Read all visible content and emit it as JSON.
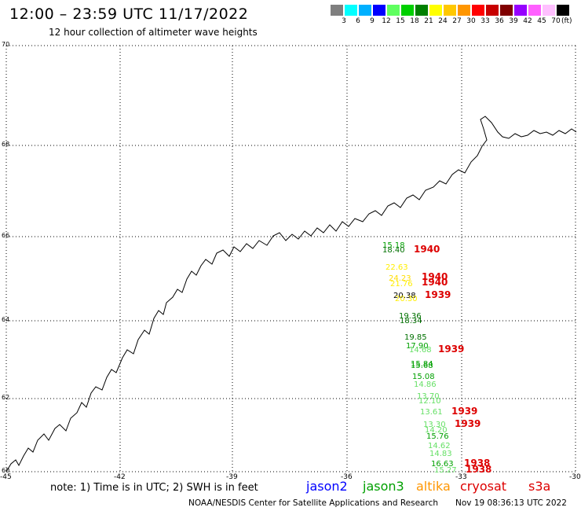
{
  "header": {
    "title": "12:00 – 23:59 UTC 11/17/2022",
    "subtitle": "12 hour collection of altimeter wave heights"
  },
  "legend": {
    "colors": [
      "#7f7f7f",
      "#00ffff",
      "#00b0ff",
      "#0000ff",
      "#5fff5f",
      "#00d000",
      "#008000",
      "#ffff00",
      "#ffc800",
      "#ff9600",
      "#ff0000",
      "#c80000",
      "#800000",
      "#9600ff",
      "#ff60ff",
      "#ffc0ff",
      "#000000"
    ],
    "labels": [
      "3",
      "6",
      "9",
      "12",
      "15",
      "18",
      "21",
      "24",
      "27",
      "30",
      "33",
      "36",
      "39",
      "42",
      "45",
      "70"
    ],
    "unit": "(ft)"
  },
  "axes": {
    "y_ticks": [
      "70",
      "68",
      "66",
      "64",
      "62",
      "60"
    ],
    "x_ticks": [
      "-45",
      "-42",
      "-39",
      "-36",
      "-33",
      "-30"
    ]
  },
  "observations": [
    {
      "text": "15.18",
      "color": "#00a000"
    },
    {
      "text": "18.40",
      "color": "#007000"
    },
    {
      "text": "1940",
      "color": "#dd0000"
    },
    {
      "text": "22.63",
      "color": "#ffee00"
    },
    {
      "text": "24.23",
      "color": "#ffdd00"
    },
    {
      "text": "21.76",
      "color": "#ffee00"
    },
    {
      "text": "1940",
      "color": "#dd0000"
    },
    {
      "text": "1940",
      "color": "#dd0000"
    },
    {
      "text": "20.38",
      "color": "#000000"
    },
    {
      "text": "20.30",
      "color": "#ffee00"
    },
    {
      "text": "1939",
      "color": "#dd0000"
    },
    {
      "text": "19.36",
      "color": "#007000"
    },
    {
      "text": "18.34",
      "color": "#007000"
    },
    {
      "text": "19.85",
      "color": "#007000"
    },
    {
      "text": "17.90",
      "color": "#00a000"
    },
    {
      "text": "14.68",
      "color": "#66e066"
    },
    {
      "text": "1939",
      "color": "#dd0000"
    },
    {
      "text": "15.84",
      "color": "#00a000"
    },
    {
      "text": "15.68",
      "color": "#00a000"
    },
    {
      "text": "15.08",
      "color": "#00a000"
    },
    {
      "text": "14.86",
      "color": "#66e066"
    },
    {
      "text": "13.70",
      "color": "#66e066"
    },
    {
      "text": "12.10",
      "color": "#66e066"
    },
    {
      "text": "13.61",
      "color": "#66e066"
    },
    {
      "text": "1939",
      "color": "#dd0000"
    },
    {
      "text": "13.30",
      "color": "#66e066"
    },
    {
      "text": "14.20",
      "color": "#66e066"
    },
    {
      "text": "1939",
      "color": "#dd0000"
    },
    {
      "text": "15.76",
      "color": "#00a000"
    },
    {
      "text": "14.62",
      "color": "#66e066"
    },
    {
      "text": "14.83",
      "color": "#66e066"
    },
    {
      "text": "16.63",
      "color": "#00a000"
    },
    {
      "text": "1938",
      "color": "#dd0000"
    },
    {
      "text": "15.27",
      "color": "#66e066"
    },
    {
      "text": "1938",
      "color": "#dd0000"
    }
  ],
  "footer": {
    "note": "note:  1) Time is in UTC;  2) SWH is in feet",
    "satellites": [
      {
        "name": "jason2",
        "color": "#0000ff"
      },
      {
        "name": "jason3",
        "color": "#00a000"
      },
      {
        "name": "altika",
        "color": "#ff9600"
      },
      {
        "name": "cryosat",
        "color": "#dd0000"
      },
      {
        "name": "s3a",
        "color": "#dd0000"
      }
    ],
    "credit": "NOAA/NESDIS Center for Satellite Applications and Research",
    "timestamp": "Nov 19 08:36:13 UTC 2022"
  }
}
